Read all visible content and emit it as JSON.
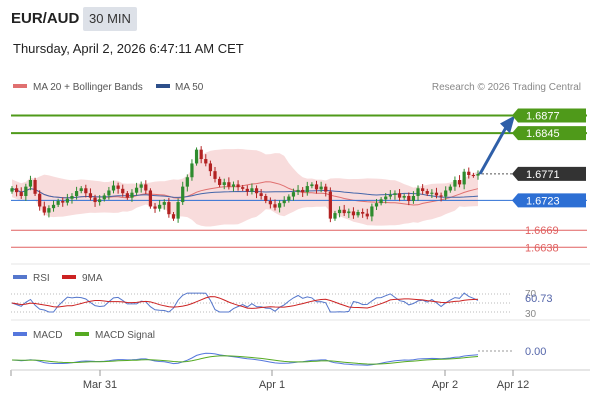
{
  "header": {
    "pair": "EUR/AUD",
    "timeframe": "30 MIN",
    "timestamp": "Thursday, April 2, 2026 6:47:11 AM CET"
  },
  "legend": {
    "ma20": "MA 20 + Bollinger Bands",
    "ma50": "MA 50",
    "copyright": "Research © 2026 Trading Central"
  },
  "colors": {
    "resistance": "#4f9a1a",
    "support_fill": "#2d6fd4",
    "target_arrow": "#2f5fa8",
    "lower_levels": "#e06060",
    "last_price_fill": "#333333",
    "candle_up": "#2e8b2e",
    "candle_down": "#b22222",
    "bollinger_fill": "#f7d6d6",
    "ma20_line": "#e07070",
    "ma50_line": "#4466aa",
    "rsi_line": "#5577cc",
    "rsi_ma_line": "#cc2222",
    "macd_line": "#5577dd",
    "macd_signal_line": "#55aa22"
  },
  "chart_data": {
    "type": "line",
    "price_range": [
      1.6615,
      1.6905
    ],
    "x_ticks": [
      "Mar 31",
      "Apr 1",
      "Apr 2",
      "Apr 12"
    ],
    "levels": {
      "resistance": [
        "1.6877",
        "1.6845"
      ],
      "last": "1.6771",
      "support": "1.6723",
      "lower": [
        "1.6669",
        "1.6638"
      ]
    },
    "price_close": [
      1.6745,
      1.6738,
      1.6731,
      1.6748,
      1.676,
      1.6735,
      1.6712,
      1.6701,
      1.6709,
      1.6715,
      1.6722,
      1.6719,
      1.6726,
      1.6731,
      1.674,
      1.6745,
      1.6736,
      1.6728,
      1.672,
      1.6725,
      1.6732,
      1.6741,
      1.675,
      1.6744,
      1.6736,
      1.6728,
      1.6737,
      1.6746,
      1.6752,
      1.6741,
      1.6712,
      1.6708,
      1.6715,
      1.672,
      1.6698,
      1.669,
      1.672,
      1.6748,
      1.6765,
      1.679,
      1.6815,
      1.6798,
      1.679,
      1.6776,
      1.6762,
      1.6751,
      1.6756,
      1.6748,
      1.6752,
      1.6747,
      1.6744,
      1.6739,
      1.6745,
      1.6736,
      1.6731,
      1.6722,
      1.6716,
      1.671,
      1.6718,
      1.6723,
      1.673,
      1.6738,
      1.6742,
      1.6738,
      1.6749,
      1.6752,
      1.6743,
      1.6748,
      1.6739,
      1.669,
      1.67,
      1.6706,
      1.67,
      1.6703,
      1.6696,
      1.6702,
      1.6699,
      1.6694,
      1.6712,
      1.6718,
      1.6725,
      1.673,
      1.6733,
      1.6736,
      1.6728,
      1.6731,
      1.6722,
      1.6731,
      1.6745,
      1.674,
      1.6735,
      1.6737,
      1.6732,
      1.673,
      1.6741,
      1.6748,
      1.676,
      1.6752,
      1.6775,
      1.6769,
      1.6768,
      1.6771
    ],
    "rsi": {
      "levels": [
        "70",
        "30"
      ],
      "last": "60.73",
      "series": [
        {
          "name": "RSI"
        },
        {
          "name": "9MA"
        }
      ]
    },
    "macd": {
      "last": "0.00",
      "series": [
        {
          "name": "MACD"
        },
        {
          "name": "MACD Signal"
        }
      ]
    }
  }
}
